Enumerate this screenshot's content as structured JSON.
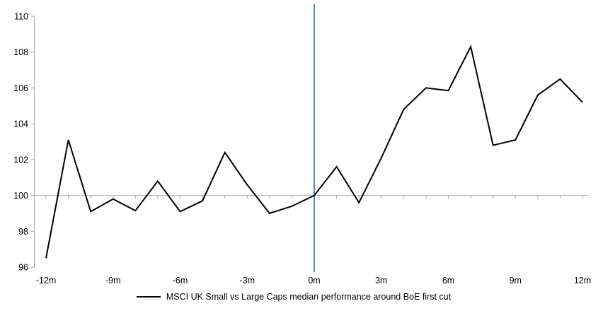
{
  "chart": {
    "colors": {
      "series_line": "#000000",
      "event_line": "#4f81bd",
      "axis": "#a6a6a6",
      "gridline": "#b3b3b3",
      "text": "#000000",
      "background": "#ffffff"
    }
  },
  "chart_data": {
    "type": "line",
    "title": "",
    "legend_label": "MSCI UK Small vs Large Caps median performance around BoE first cut",
    "legend_position": "bottom-center",
    "x_unit": "months around BoE first cut",
    "x": [
      -12,
      -11,
      -10,
      -9,
      -8,
      -7,
      -6,
      -5,
      -4,
      -3,
      -2,
      -1,
      0,
      1,
      2,
      3,
      4,
      5,
      6,
      7,
      8,
      9,
      10,
      11,
      12
    ],
    "values": [
      96.5,
      103.1,
      99.1,
      99.8,
      99.15,
      100.8,
      99.1,
      99.7,
      102.4,
      100.6,
      99.0,
      99.4,
      100.0,
      101.6,
      99.6,
      102.1,
      104.8,
      106.0,
      105.85,
      108.3,
      102.8,
      103.1,
      105.6,
      106.5,
      105.2
    ],
    "ylim": [
      96,
      110
    ],
    "y_ticks": [
      96,
      98,
      100,
      102,
      104,
      106,
      108,
      110
    ],
    "x_tick_months": [
      -12,
      -9,
      -6,
      -3,
      0,
      3,
      6,
      9,
      12
    ],
    "x_tick_labels": [
      "-12m",
      "-9m",
      "-6m",
      "-3m",
      "0m",
      "3m",
      "6m",
      "9m",
      "12m"
    ],
    "minor_tick_every_month": true,
    "baseline_value": 100,
    "event_line_x": 0,
    "grid": "single horizontal line at 100 only"
  }
}
